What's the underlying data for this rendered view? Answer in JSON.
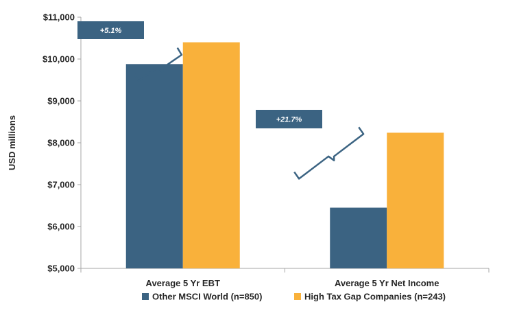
{
  "chart_data": {
    "type": "bar",
    "title": "",
    "ylabel": "USD millions",
    "xlabel": "",
    "categories": [
      "Average 5 Yr EBT",
      "Average 5 Yr Net Income"
    ],
    "series": [
      {
        "name": "Other MSCI World (n=850)",
        "color": "#3B6382",
        "values": [
          9880,
          6450
        ]
      },
      {
        "name": "High Tax Gap Companies (n=243)",
        "color": "#F9B13B",
        "values": [
          10400,
          8240
        ]
      }
    ],
    "ylim": [
      5000,
      11000
    ],
    "yticks": [
      5000,
      6000,
      7000,
      8000,
      9000,
      10000,
      11000
    ],
    "ytick_labels": [
      "$5,000",
      "$6,000",
      "$7,000",
      "$8,000",
      "$9,000",
      "$10,000",
      "$11,000"
    ],
    "grid": false,
    "legend_position": "bottom",
    "annotations": [
      {
        "category_index": 0,
        "text": "+5.1%"
      },
      {
        "category_index": 1,
        "text": "+21.7%"
      }
    ],
    "annotation_color": "#3B6382"
  }
}
